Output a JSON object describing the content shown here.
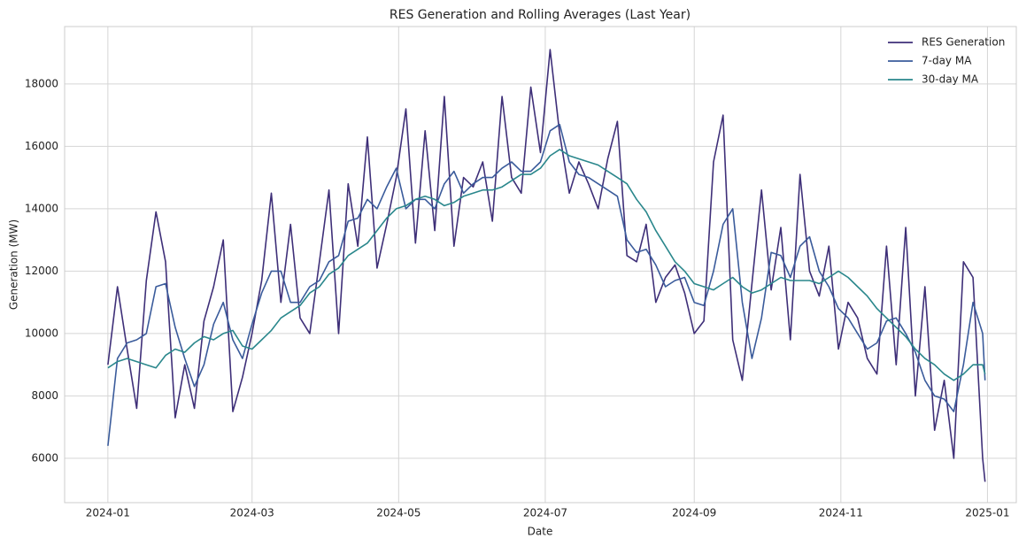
{
  "chart_data": {
    "type": "line",
    "title": "RES Generation and Rolling Averages (Last Year)",
    "x_label": "Date",
    "y_label": "Generation (MW)",
    "x": [
      "2024-01-01",
      "2024-01-05",
      "2024-01-09",
      "2024-01-13",
      "2024-01-17",
      "2024-01-21",
      "2024-01-25",
      "2024-01-29",
      "2024-02-02",
      "2024-02-06",
      "2024-02-10",
      "2024-02-14",
      "2024-02-18",
      "2024-02-22",
      "2024-02-26",
      "2024-03-01",
      "2024-03-05",
      "2024-03-09",
      "2024-03-13",
      "2024-03-17",
      "2024-03-21",
      "2024-03-25",
      "2024-03-29",
      "2024-04-02",
      "2024-04-06",
      "2024-04-10",
      "2024-04-14",
      "2024-04-18",
      "2024-04-22",
      "2024-04-26",
      "2024-04-30",
      "2024-05-04",
      "2024-05-08",
      "2024-05-12",
      "2024-05-16",
      "2024-05-20",
      "2024-05-24",
      "2024-05-28",
      "2024-06-01",
      "2024-06-05",
      "2024-06-09",
      "2024-06-13",
      "2024-06-17",
      "2024-06-21",
      "2024-06-25",
      "2024-06-29",
      "2024-07-03",
      "2024-07-07",
      "2024-07-11",
      "2024-07-15",
      "2024-07-19",
      "2024-07-23",
      "2024-07-27",
      "2024-07-31",
      "2024-08-04",
      "2024-08-08",
      "2024-08-12",
      "2024-08-16",
      "2024-08-20",
      "2024-08-24",
      "2024-08-28",
      "2024-09-01",
      "2024-09-05",
      "2024-09-09",
      "2024-09-13",
      "2024-09-17",
      "2024-09-21",
      "2024-09-25",
      "2024-09-29",
      "2024-10-03",
      "2024-10-07",
      "2024-10-11",
      "2024-10-15",
      "2024-10-19",
      "2024-10-23",
      "2024-10-27",
      "2024-10-31",
      "2024-11-04",
      "2024-11-08",
      "2024-11-12",
      "2024-11-16",
      "2024-11-20",
      "2024-11-24",
      "2024-11-28",
      "2024-12-02",
      "2024-12-06",
      "2024-12-10",
      "2024-12-14",
      "2024-12-18",
      "2024-12-22",
      "2024-12-26",
      "2024-12-30",
      "2024-12-31"
    ],
    "series": [
      {
        "name": "RES Generation",
        "color": "#3e2f78",
        "values": [
          9000,
          11500,
          9500,
          7600,
          11700,
          13900,
          12300,
          7300,
          9000,
          7600,
          10400,
          11500,
          13000,
          7500,
          8600,
          10000,
          11700,
          14500,
          11000,
          13500,
          10500,
          10000,
          12300,
          14600,
          10000,
          14800,
          12800,
          16300,
          12100,
          13500,
          15000,
          17200,
          12900,
          16500,
          13300,
          17600,
          12800,
          15000,
          14700,
          15500,
          13600,
          17600,
          15000,
          14500,
          17900,
          15800,
          19100,
          16400,
          14500,
          15500,
          14800,
          14000,
          15600,
          16800,
          12500,
          12300,
          13500,
          11000,
          11800,
          12200,
          11300,
          10000,
          10400,
          15500,
          17000,
          9800,
          8500,
          11600,
          14600,
          11400,
          13400,
          9800,
          15100,
          12000,
          11200,
          12800,
          9500,
          11000,
          10500,
          9200,
          8700,
          12800,
          9000,
          13400,
          8000,
          11500,
          6900,
          8500,
          6000,
          12300,
          11800,
          6000,
          5250
        ]
      },
      {
        "name": "7-day MA",
        "color": "#3a5b9b",
        "values": [
          6400,
          9200,
          9700,
          9800,
          10000,
          11500,
          11600,
          10200,
          9200,
          8300,
          9000,
          10300,
          11000,
          9800,
          9200,
          10300,
          11300,
          12000,
          12000,
          11000,
          11000,
          11500,
          11700,
          12300,
          12500,
          13600,
          13700,
          14300,
          14000,
          14700,
          15300,
          14000,
          14300,
          14300,
          14000,
          14800,
          15200,
          14500,
          14800,
          15000,
          15000,
          15300,
          15500,
          15200,
          15200,
          15500,
          16500,
          16700,
          15500,
          15100,
          15000,
          14800,
          14600,
          14400,
          13000,
          12600,
          12700,
          12200,
          11500,
          11700,
          11800,
          11000,
          10900,
          12000,
          13500,
          14000,
          11000,
          9200,
          10500,
          12600,
          12500,
          11800,
          12800,
          13100,
          12000,
          11500,
          10800,
          10500,
          10000,
          9500,
          9700,
          10400,
          10500,
          10000,
          9400,
          8500,
          8000,
          7900,
          7500,
          9000,
          11000,
          10000,
          8500
        ]
      },
      {
        "name": "30-day MA",
        "color": "#2a878c",
        "values": [
          8900,
          9100,
          9200,
          9100,
          9000,
          8900,
          9300,
          9500,
          9400,
          9700,
          9900,
          9800,
          10000,
          10100,
          9600,
          9500,
          9800,
          10100,
          10500,
          10700,
          10900,
          11300,
          11500,
          11900,
          12100,
          12500,
          12700,
          12900,
          13300,
          13700,
          14000,
          14100,
          14300,
          14400,
          14300,
          14100,
          14200,
          14400,
          14500,
          14600,
          14600,
          14700,
          14900,
          15100,
          15100,
          15300,
          15700,
          15900,
          15700,
          15600,
          15500,
          15400,
          15200,
          15000,
          14800,
          14300,
          13900,
          13300,
          12800,
          12300,
          12000,
          11600,
          11500,
          11400,
          11600,
          11800,
          11500,
          11300,
          11400,
          11600,
          11800,
          11700,
          11700,
          11700,
          11600,
          11800,
          12000,
          11800,
          11500,
          11200,
          10800,
          10500,
          10200,
          9900,
          9500,
          9200,
          9000,
          8700,
          8500,
          8700,
          9000,
          9000,
          8700
        ]
      }
    ],
    "xlim": [
      "2023-12-14",
      "2025-01-13"
    ],
    "xticks": [
      "2024-01",
      "2024-03",
      "2024-05",
      "2024-07",
      "2024-09",
      "2024-11",
      "2025-01"
    ],
    "ylim": [
      4580,
      19840
    ],
    "yticks": [
      6000,
      8000,
      10000,
      12000,
      14000,
      16000,
      18000
    ],
    "grid": true,
    "legend": "upper right"
  }
}
